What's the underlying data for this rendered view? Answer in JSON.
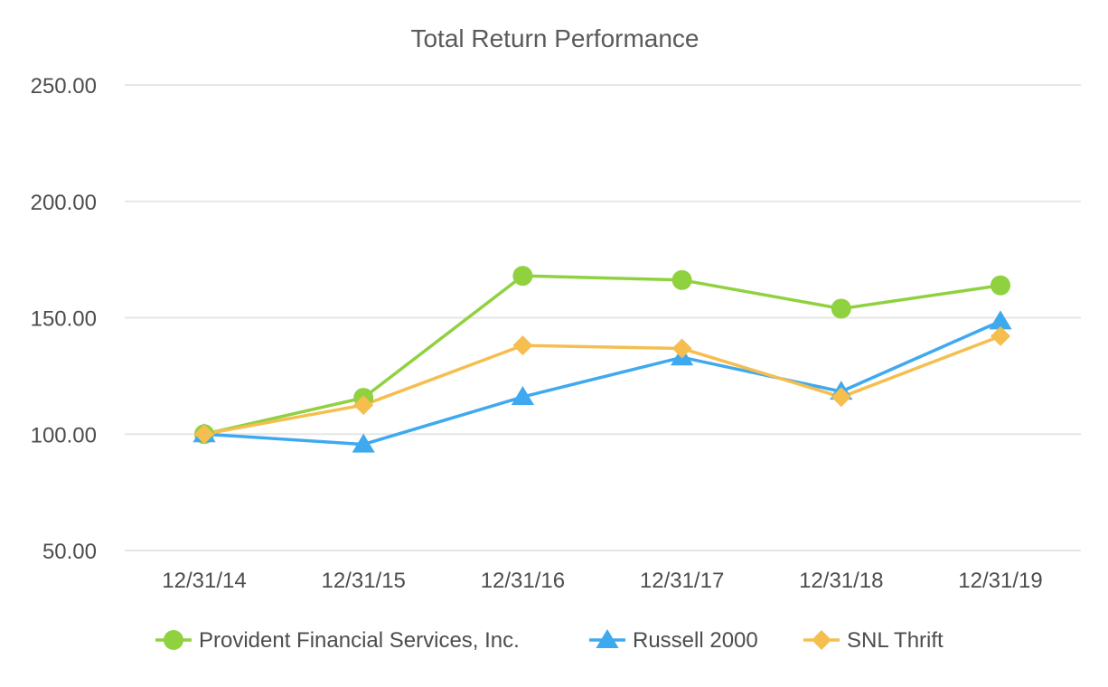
{
  "chart_data": {
    "type": "line",
    "title": "Total Return Performance",
    "xlabel": "",
    "ylabel": "",
    "categories": [
      "12/31/14",
      "12/31/15",
      "12/31/16",
      "12/31/17",
      "12/31/18",
      "12/31/19"
    ],
    "ylim": [
      50,
      250
    ],
    "yticks": [
      "50.00",
      "100.00",
      "150.00",
      "200.00",
      "250.00"
    ],
    "grid": true,
    "legend_position": "bottom",
    "series": [
      {
        "name": "Provident Financial Services, Inc.",
        "color": "#8fd13f",
        "marker": "circle",
        "values": [
          100.0,
          115.6,
          168.0,
          166.2,
          153.9,
          163.9
        ]
      },
      {
        "name": "Russell 2000",
        "color": "#3fa9f0",
        "marker": "triangle",
        "values": [
          100.0,
          95.6,
          116.0,
          133.0,
          118.3,
          148.5
        ]
      },
      {
        "name": "SNL Thrift",
        "color": "#f5be4f",
        "marker": "diamond",
        "values": [
          100.0,
          112.5,
          138.1,
          136.8,
          115.9,
          142.1
        ]
      }
    ]
  }
}
